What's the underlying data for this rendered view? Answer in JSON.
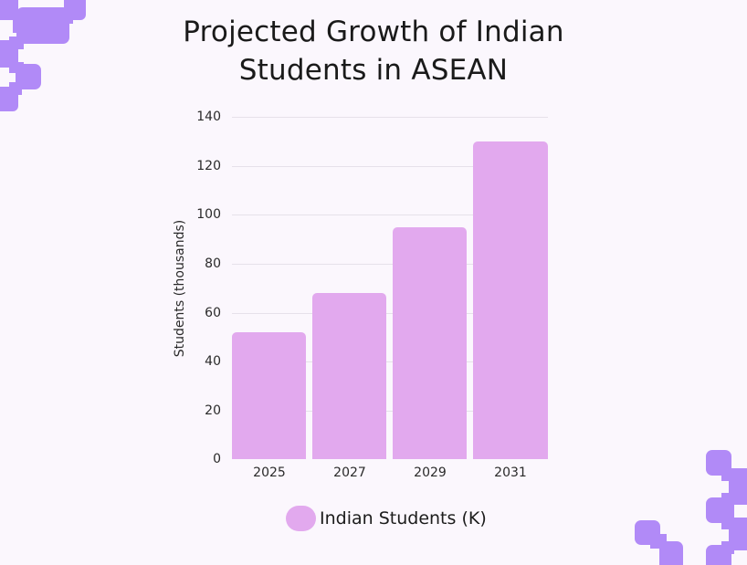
{
  "title": {
    "line1": "Projected Growth of Indian",
    "line2": "Students in ASEAN"
  },
  "colors": {
    "background": "#fbf7fd",
    "bar": "#e2a9ee",
    "decoration": "#b18af7",
    "grid": "#e6e1ea"
  },
  "axes": {
    "ylabel": "Students (thousands)",
    "yticks": [
      "0",
      "20",
      "40",
      "60",
      "80",
      "100",
      "120",
      "140"
    ],
    "xticks": [
      "2025",
      "2027",
      "2029",
      "2031"
    ]
  },
  "legend": {
    "label": "Indian Students (K)"
  },
  "chart_data": {
    "type": "bar",
    "title": "Projected Growth of Indian Students in ASEAN",
    "categories": [
      "2025",
      "2027",
      "2029",
      "2031"
    ],
    "series": [
      {
        "name": "Indian Students (K)",
        "values": [
          52,
          68,
          95,
          130
        ]
      }
    ],
    "xlabel": "",
    "ylabel": "Students (thousands)",
    "ylim": [
      0,
      140
    ],
    "yticks": [
      0,
      20,
      40,
      60,
      80,
      100,
      120,
      140
    ],
    "grid": true,
    "legend_position": "bottom"
  }
}
